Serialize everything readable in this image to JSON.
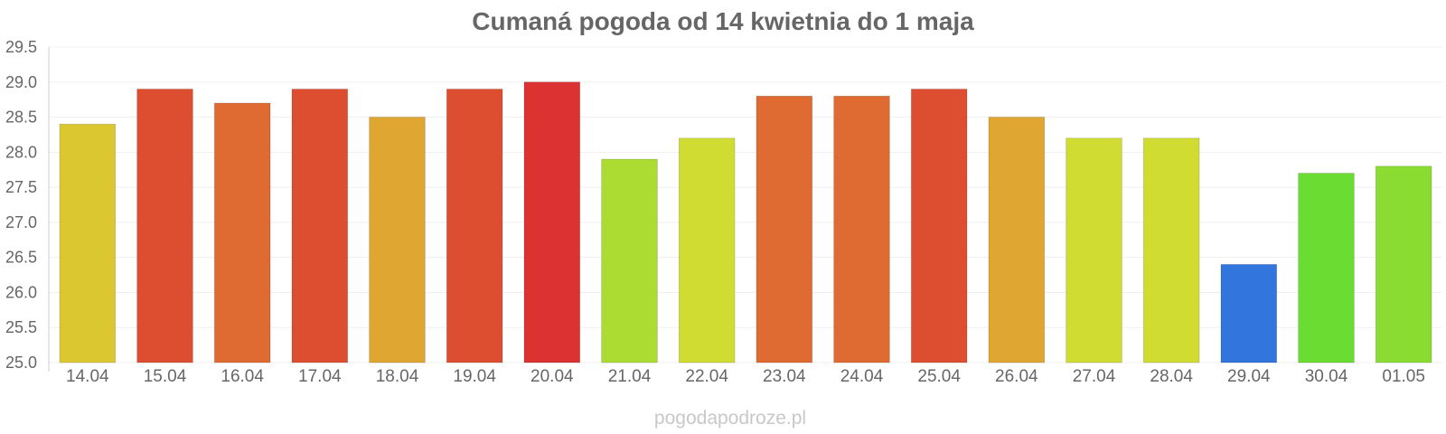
{
  "chart_data": {
    "type": "bar",
    "title": "Cumaná pogoda od 14 kwietnia do 1 maja",
    "xlabel": "",
    "ylabel": "",
    "categories": [
      "14.04",
      "15.04",
      "16.04",
      "17.04",
      "18.04",
      "19.04",
      "20.04",
      "21.04",
      "22.04",
      "23.04",
      "24.04",
      "25.04",
      "26.04",
      "27.04",
      "28.04",
      "29.04",
      "30.04",
      "01.05"
    ],
    "values": [
      28.4,
      28.9,
      28.7,
      28.9,
      28.5,
      28.9,
      29.0,
      27.9,
      28.2,
      28.8,
      28.8,
      28.9,
      28.5,
      28.2,
      28.2,
      26.4,
      27.7,
      27.8
    ],
    "colors": [
      "#dbc830",
      "#dd4e30",
      "#df6b32",
      "#dd4e30",
      "#dfa632",
      "#dd4e30",
      "#dc3232",
      "#acdc32",
      "#d0dc32",
      "#df6b32",
      "#df6b32",
      "#dd4e30",
      "#dfa632",
      "#d0dc32",
      "#d0dc32",
      "#3275dc",
      "#6adc32",
      "#8adc32"
    ],
    "ylim": [
      25.0,
      29.5
    ],
    "yticks": [
      "25.0",
      "25.5",
      "26.0",
      "26.5",
      "27.0",
      "27.5",
      "28.0",
      "28.5",
      "29.0",
      "29.5"
    ],
    "grid": true,
    "legend": "none"
  },
  "watermark": "pogodapodroze.pl"
}
